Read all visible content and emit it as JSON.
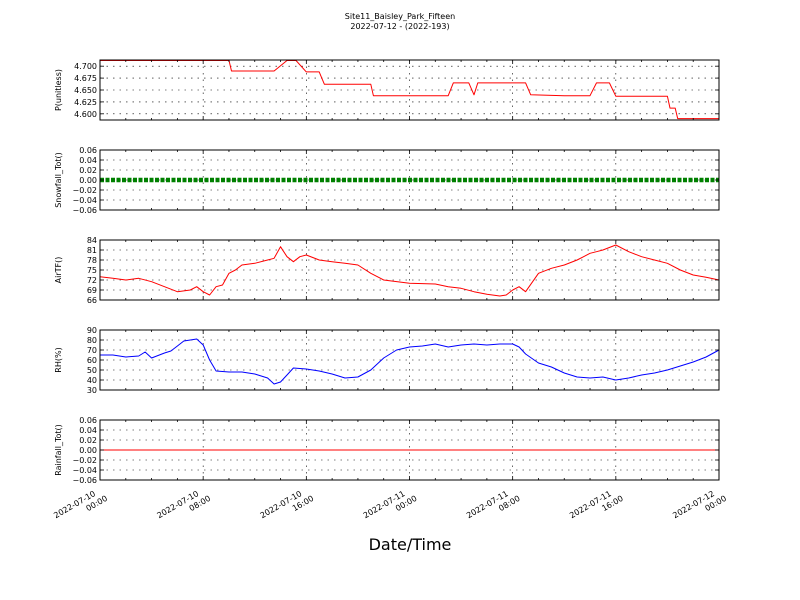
{
  "figure": {
    "title_line1": "Site11_Baisley_Park_Fifteen",
    "title_line2": "2022-07-12 - (2022-193)",
    "xlabel": "Date/Time",
    "x_tick_labels": [
      [
        "2022-07-10",
        "00:00"
      ],
      [
        "2022-07-10",
        "08:00"
      ],
      [
        "2022-07-10",
        "16:00"
      ],
      [
        "2022-07-11",
        "00:00"
      ],
      [
        "2022-07-11",
        "08:00"
      ],
      [
        "2022-07-11",
        "16:00"
      ],
      [
        "2022-07-12",
        "00:00"
      ]
    ]
  },
  "chart_data": [
    {
      "type": "line",
      "ylabel": "P(unitless)",
      "color": "#ff0000",
      "ylim": [
        4.587,
        4.713
      ],
      "yticks": [
        4.6,
        4.625,
        4.65,
        4.675,
        4.7
      ],
      "ytick_labels": [
        "4.600",
        "4.625",
        "4.650",
        "4.675",
        "4.700"
      ],
      "x_hours": [
        0,
        4,
        8,
        10,
        10.2,
        13.5,
        14.5,
        15.2,
        16,
        17,
        17.4,
        19,
        21,
        21.2,
        26,
        27,
        27.4,
        28.6,
        29,
        29.3,
        33,
        33.4,
        36,
        38,
        38.5,
        39.5,
        40,
        44,
        44.2,
        44.6,
        44.8,
        48
      ],
      "y_values": [
        4.712,
        4.712,
        4.712,
        4.712,
        4.69,
        4.69,
        4.712,
        4.712,
        4.688,
        4.688,
        4.662,
        4.662,
        4.662,
        4.638,
        4.638,
        4.638,
        4.665,
        4.665,
        4.64,
        4.665,
        4.665,
        4.64,
        4.638,
        4.638,
        4.665,
        4.665,
        4.637,
        4.637,
        4.612,
        4.612,
        4.59,
        4.59
      ]
    },
    {
      "type": "line",
      "ylabel": "Snowfall_Tot()",
      "color": "#008000",
      "ylim": [
        -0.06,
        0.06
      ],
      "yticks": [
        -0.06,
        -0.04,
        -0.02,
        0.0,
        0.02,
        0.04,
        0.06
      ],
      "ytick_labels": [
        "−0.06",
        "−0.04",
        "−0.02",
        "0.00",
        "0.02",
        "0.04",
        "0.06"
      ],
      "x_hours": [
        0,
        48
      ],
      "y_values": [
        0,
        0
      ]
    },
    {
      "type": "line",
      "ylabel": "AirTF()",
      "color": "#ff0000",
      "ylim": [
        66,
        84
      ],
      "yticks": [
        66,
        69,
        72,
        75,
        78,
        81,
        84
      ],
      "ytick_labels": [
        "66",
        "69",
        "72",
        "75",
        "78",
        "81",
        "84"
      ],
      "x_hours": [
        0,
        1,
        2,
        3,
        4,
        5,
        6,
        7,
        7.5,
        8,
        8.5,
        9,
        9.5,
        10,
        10.5,
        11,
        12,
        13,
        13.5,
        14,
        14.5,
        15,
        15.5,
        16,
        17,
        18,
        19,
        20,
        21,
        22,
        24,
        26,
        27,
        28,
        29,
        30,
        31,
        31.5,
        32,
        32.5,
        33,
        34,
        35,
        36,
        37,
        37.5,
        38,
        38.5,
        39,
        40,
        41,
        42,
        43,
        44,
        45,
        46,
        47,
        48
      ],
      "y_values": [
        73,
        72.5,
        72,
        72.5,
        71.5,
        70,
        68.5,
        69,
        70,
        68.5,
        67.5,
        70,
        70.5,
        74,
        75,
        76.5,
        77,
        78,
        78.5,
        82,
        79,
        77.5,
        79,
        79.5,
        78,
        77.5,
        77,
        76.5,
        74,
        72,
        71,
        70.8,
        70,
        69.5,
        68.5,
        67.7,
        67.2,
        67.5,
        69,
        70,
        68.5,
        74,
        75.5,
        76.5,
        78,
        79,
        80,
        80.5,
        81,
        82.5,
        80.5,
        79,
        78,
        77,
        75,
        73.5,
        72.8,
        72
      ]
    },
    {
      "type": "line",
      "ylabel": "RH(%)",
      "color": "#0000ff",
      "ylim": [
        30,
        90
      ],
      "yticks": [
        30,
        40,
        50,
        60,
        70,
        80,
        90
      ],
      "ytick_labels": [
        "30",
        "40",
        "50",
        "60",
        "70",
        "80",
        "90"
      ],
      "x_hours": [
        0,
        1,
        2,
        3,
        3.5,
        4,
        5,
        5.5,
        6,
        6.5,
        7,
        7.5,
        8,
        8.5,
        9,
        10,
        11,
        12,
        12.5,
        13,
        13.5,
        14,
        14.5,
        15,
        16,
        17,
        18,
        19,
        20,
        21,
        22,
        23,
        24,
        25,
        26,
        27,
        28,
        29,
        30,
        31,
        32,
        32.5,
        33,
        34,
        35,
        36,
        37,
        38,
        39,
        40,
        41,
        42,
        43,
        44,
        45,
        46,
        47,
        48
      ],
      "y_values": [
        65,
        65,
        63,
        64,
        68,
        62,
        67,
        69,
        74,
        79,
        80,
        81,
        75,
        60,
        49,
        48,
        48,
        46,
        44,
        42,
        36,
        38,
        45,
        52,
        51,
        49,
        46,
        42,
        43,
        50,
        62,
        70,
        73,
        74,
        76,
        73,
        75,
        76,
        75,
        76,
        76,
        73,
        66,
        57,
        53,
        47,
        43,
        42,
        43,
        40,
        42,
        45,
        47,
        50,
        54,
        58,
        63,
        70
      ]
    },
    {
      "type": "line",
      "ylabel": "Rainfall_Tot()",
      "color": "#ff0000",
      "ylim": [
        -0.06,
        0.06
      ],
      "yticks": [
        -0.06,
        -0.04,
        -0.02,
        0.0,
        0.02,
        0.04,
        0.06
      ],
      "ytick_labels": [
        "−0.06",
        "−0.04",
        "−0.02",
        "0.00",
        "0.02",
        "0.04",
        "0.06"
      ],
      "x_hours": [
        0,
        48
      ],
      "y_values": [
        0,
        0
      ]
    }
  ]
}
